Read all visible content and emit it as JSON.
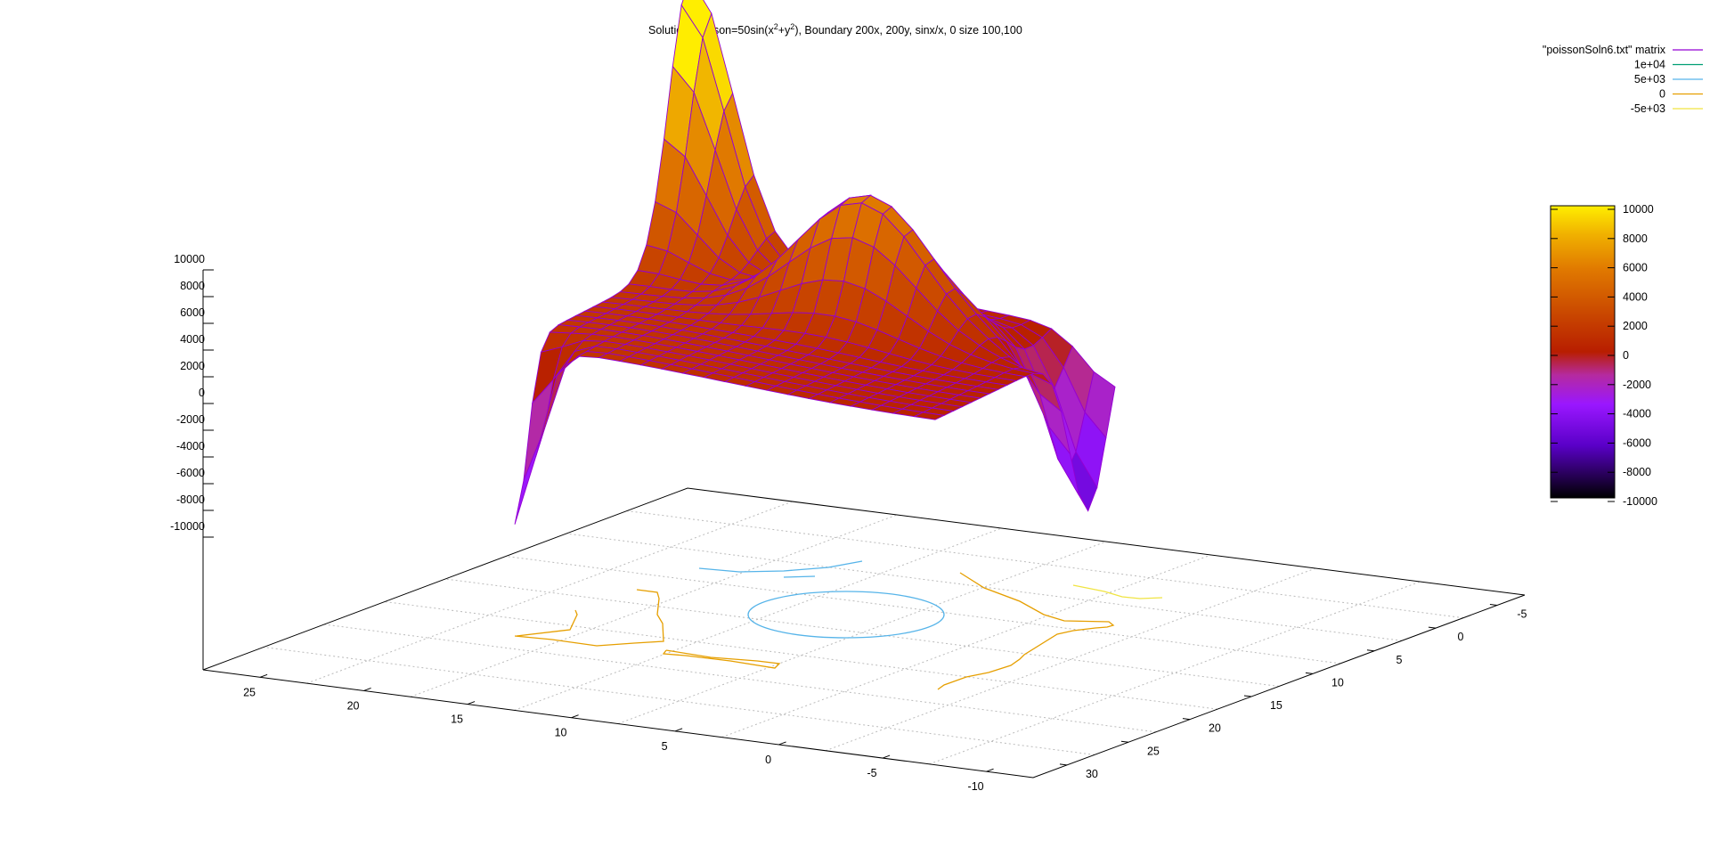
{
  "chart_data": {
    "type": "surface3d",
    "title": {
      "prefix": "Solution Poisson=50sin(x",
      "sup1": "2",
      "mid": "+y",
      "sup2": "2",
      "suffix": "), Boundary 200x, 200y, sinx/x, 0 size 100,100"
    },
    "z_ticks": [
      "10000",
      "8000",
      "6000",
      "4000",
      "2000",
      "0",
      "-2000",
      "-4000",
      "-6000",
      "-8000",
      "-10000"
    ],
    "x_ticks": [
      "25",
      "20",
      "15",
      "10",
      "5",
      "0",
      "-5",
      "-10"
    ],
    "y_ticks": [
      "-5",
      "0",
      "5",
      "10",
      "15",
      "20",
      "25",
      "30"
    ],
    "colorbar": {
      "min": -10000,
      "max": 10000,
      "ticks": [
        "10000",
        "8000",
        "6000",
        "4000",
        "2000",
        "0",
        "-2000",
        "-4000",
        "-6000",
        "-8000",
        "-10000"
      ]
    },
    "legend": [
      {
        "label": "\"poissonSoln6.txt\" matrix",
        "color": "#9400d3"
      },
      {
        "label": "1e+04",
        "color": "#009e73"
      },
      {
        "label": "5e+03",
        "color": "#56b4e9"
      },
      {
        "label": "0",
        "color": "#e69f00"
      },
      {
        "label": "-5e+03",
        "color": "#f0e442"
      }
    ],
    "legend_position": "top-right",
    "surface_description": "Mesh surface with raised central dome (~4000-6000), a high corner peak (~10000) and negative corners (~-6000)",
    "grid": true
  }
}
